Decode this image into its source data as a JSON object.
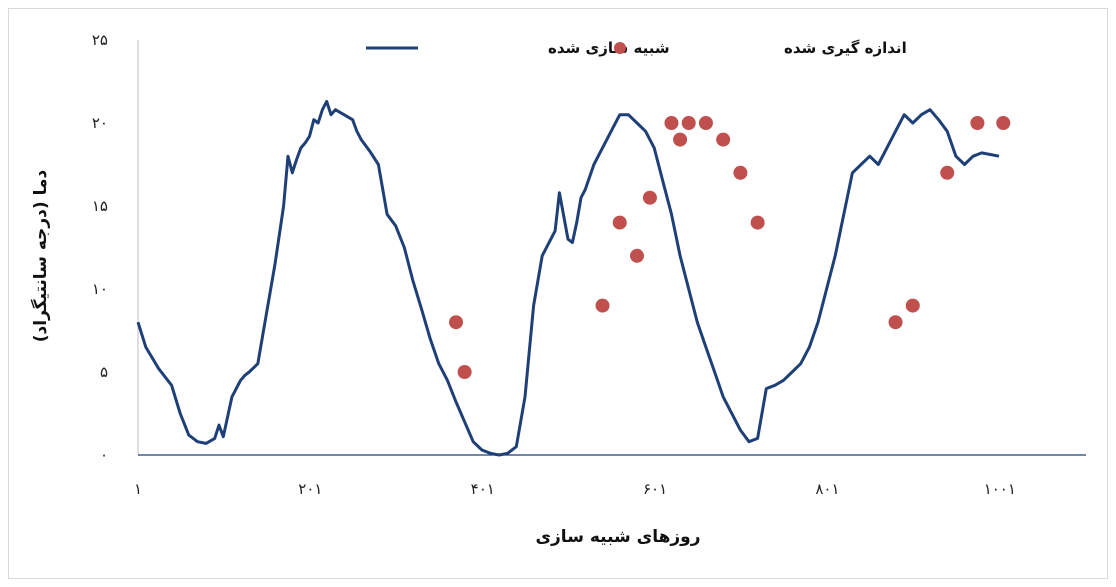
{
  "chart_data": {
    "type": "line",
    "xlabel": "روزهای شبیه سازی",
    "ylabel": "دما (درجه سانتیگراد)",
    "xlim": [
      1,
      1101
    ],
    "ylim": [
      0,
      25
    ],
    "x_ticks": [
      1,
      201,
      401,
      601,
      801,
      1001
    ],
    "x_tick_labels": [
      "۱",
      "۲۰۱",
      "۴۰۱",
      "۶۰۱",
      "۸۰۱",
      "۱۰۰۱"
    ],
    "y_ticks": [
      0,
      5,
      10,
      15,
      20,
      25
    ],
    "y_tick_labels": [
      "۰",
      "۵",
      "۱۰",
      "۱۵",
      "۲۰",
      "۲۵"
    ],
    "legend_position": "top",
    "series": [
      {
        "name": "شبیه سازی شده",
        "kind": "line",
        "color": "#1f3f77",
        "x": [
          1,
          10,
          25,
          40,
          50,
          60,
          70,
          80,
          90,
          95,
          100,
          110,
          120,
          125,
          130,
          140,
          150,
          160,
          170,
          175,
          180,
          185,
          190,
          195,
          200,
          205,
          210,
          215,
          220,
          225,
          230,
          240,
          250,
          255,
          260,
          270,
          280,
          290,
          300,
          310,
          320,
          330,
          340,
          350,
          360,
          370,
          380,
          390,
          400,
          410,
          420,
          430,
          440,
          450,
          460,
          470,
          480,
          485,
          490,
          500,
          505,
          510,
          515,
          520,
          530,
          535,
          540,
          550,
          560,
          570,
          580,
          590,
          600,
          610,
          620,
          630,
          640,
          650,
          660,
          670,
          680,
          690,
          700,
          710,
          720,
          730,
          740,
          750,
          760,
          770,
          780,
          790,
          800,
          810,
          820,
          830,
          840,
          850,
          860,
          870,
          880,
          890,
          900,
          910,
          920,
          930,
          940,
          950,
          960,
          970,
          980,
          990,
          1000
        ],
        "y": [
          8.0,
          6.5,
          5.2,
          4.2,
          2.5,
          1.2,
          0.8,
          0.7,
          1.0,
          1.8,
          1.1,
          3.5,
          4.5,
          4.8,
          5.0,
          5.5,
          8.5,
          11.5,
          15.0,
          18.0,
          17.0,
          17.8,
          18.5,
          18.8,
          19.2,
          20.2,
          20.0,
          20.8,
          21.3,
          20.5,
          20.8,
          20.5,
          20.2,
          19.5,
          19.0,
          18.3,
          17.5,
          14.5,
          13.8,
          12.5,
          10.5,
          8.8,
          7.0,
          5.5,
          4.5,
          3.2,
          2.0,
          0.8,
          0.3,
          0.1,
          0.0,
          0.1,
          0.5,
          3.5,
          9.0,
          12.0,
          13.0,
          13.5,
          15.8,
          13.0,
          12.8,
          14.0,
          15.5,
          16.0,
          17.5,
          18.0,
          18.5,
          19.5,
          20.5,
          20.5,
          20.0,
          19.5,
          18.5,
          16.5,
          14.5,
          12.0,
          10.0,
          8.0,
          6.5,
          5.0,
          3.5,
          2.5,
          1.5,
          0.8,
          1.0,
          4.0,
          4.2,
          4.5,
          5.0,
          5.5,
          6.5,
          8.0,
          10.0,
          12.0,
          14.5,
          17.0,
          17.5,
          18.0,
          17.5,
          18.5,
          19.5,
          20.5,
          20.0,
          20.5,
          20.8,
          20.2,
          19.5,
          18.0,
          17.5,
          18.0,
          18.2,
          18.1,
          18.0
        ]
      },
      {
        "name": "اندازه گیری شده",
        "kind": "scatter",
        "color": "#c0504d",
        "x": [
          370,
          380,
          540,
          560,
          580,
          595,
          620,
          630,
          640,
          660,
          680,
          700,
          720,
          880,
          900,
          940,
          975,
          1005
        ],
        "y": [
          8.0,
          5.0,
          9.0,
          14.0,
          12.0,
          15.5,
          20.0,
          19.0,
          20.0,
          20.0,
          19.0,
          17.0,
          14.0,
          8.0,
          9.0,
          17.0,
          20.0,
          20.0
        ]
      }
    ]
  }
}
